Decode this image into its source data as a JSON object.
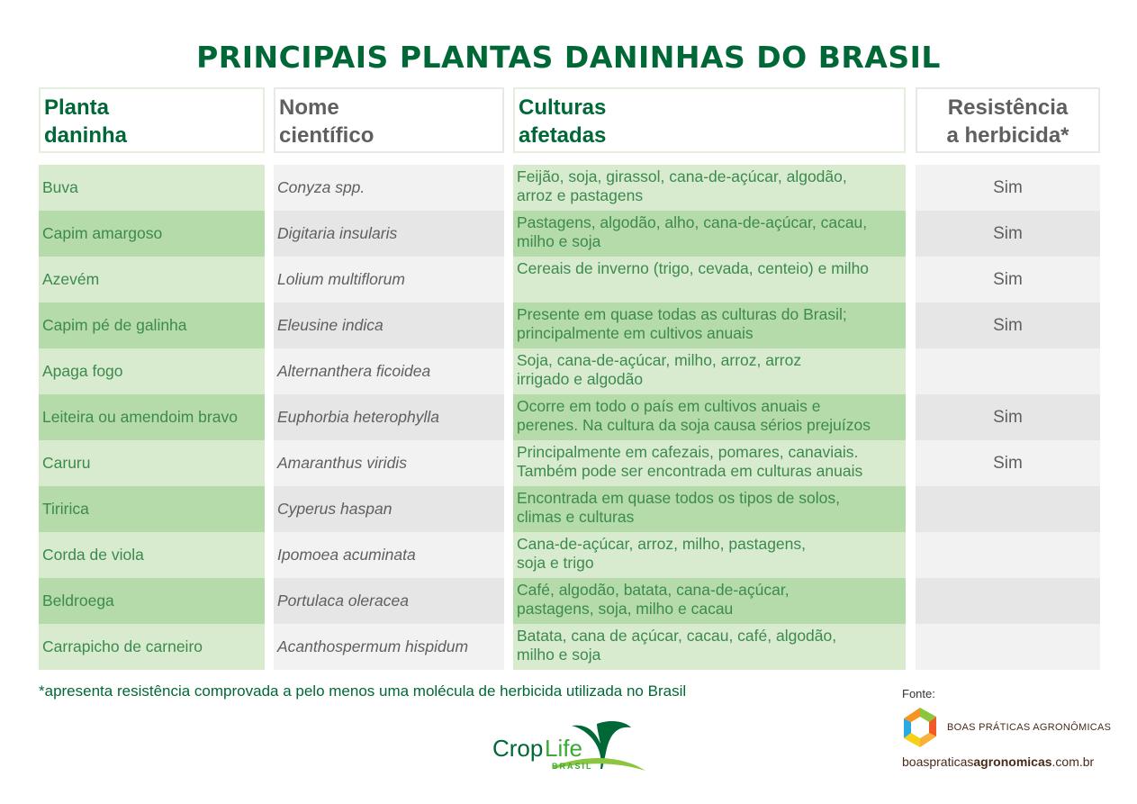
{
  "title": "PRINCIPAIS PLANTAS DANINHAS DO BRASIL",
  "headers": {
    "planta": [
      "Planta",
      "daninha"
    ],
    "nome": [
      "Nome",
      "científico"
    ],
    "culturas": [
      "Culturas",
      "afetadas"
    ],
    "resistencia": [
      "Resistência",
      "a herbicida*"
    ]
  },
  "rows": [
    {
      "planta": "Buva",
      "nome": "Conyza spp.",
      "culturas": [
        "Feijão, soja, girassol, cana-de-açúcar, algodão,",
        "arroz e pastagens"
      ],
      "resistencia": "Sim"
    },
    {
      "planta": "Capim amargoso",
      "nome": "Digitaria insularis",
      "culturas": [
        "Pastagens, algodão, alho, cana-de-açúcar, cacau,",
        "milho e soja"
      ],
      "resistencia": "Sim"
    },
    {
      "planta": "Azevém",
      "nome": "Lolium multiflorum",
      "culturas": [
        "Cereais de inverno (trigo, cevada, centeio) e milho",
        ""
      ],
      "resistencia": "Sim"
    },
    {
      "planta": "Capim pé de galinha",
      "nome": "Eleusine indica",
      "culturas": [
        "Presente em quase todas as culturas do Brasil;",
        "principalmente em cultivos anuais"
      ],
      "resistencia": "Sim"
    },
    {
      "planta": "Apaga fogo",
      "nome": "Alternanthera ficoidea",
      "culturas": [
        "Soja, cana-de-açúcar, milho, arroz, arroz",
        "irrigado e algodão"
      ],
      "resistencia": ""
    },
    {
      "planta": "Leiteira ou amendoim bravo",
      "nome": "Euphorbia heterophylla",
      "culturas": [
        "Ocorre em todo o país em cultivos anuais e",
        "perenes. Na cultura da soja causa sérios prejuízos"
      ],
      "resistencia": "Sim"
    },
    {
      "planta": "Caruru",
      "nome": "Amaranthus viridis",
      "culturas": [
        "Principalmente em cafezais, pomares, canaviais.",
        "Também pode ser encontrada em culturas anuais"
      ],
      "resistencia": "Sim"
    },
    {
      "planta": "Tiririca",
      "nome": "Cyperus haspan",
      "culturas": [
        "Encontrada em quase todos os tipos de solos,",
        "climas e culturas"
      ],
      "resistencia": ""
    },
    {
      "planta": "Corda de viola",
      "nome": "Ipomoea acuminata",
      "culturas": [
        "Cana-de-açúcar, arroz, milho, pastagens,",
        "soja e trigo"
      ],
      "resistencia": ""
    },
    {
      "planta": "Beldroega",
      "nome": "Portulaca oleracea",
      "culturas": [
        "Café, algodão, batata, cana-de-açúcar,",
        "pastagens, soja, milho e cacau"
      ],
      "resistencia": ""
    },
    {
      "planta": "Carrapicho de carneiro",
      "nome": "Acanthospermum hispidum",
      "culturas": [
        "Batata, cana de açúcar, cacau, café, algodão,",
        "milho e soja"
      ],
      "resistencia": ""
    }
  ],
  "footnote": "*apresenta resistência comprovada a pelo menos uma molécula de herbicida utilizada no Brasil",
  "source": {
    "label": "Fonte:",
    "name": "BOAS PRÁTICAS AGRONÔMICAS",
    "url_a": "boaspraticas",
    "url_b": "agronomicas",
    "url_c": ".com.br"
  },
  "logo": {
    "crop": "Crop",
    "life": "Life",
    "brasil": "BRASIL"
  },
  "colors": {
    "brand_green": "#006837",
    "row_green_light": "#d8ebcf",
    "row_green_dark": "#b6dbab",
    "row_grey_light": "#f2f2f2",
    "row_grey_dark": "#e6e6e6"
  }
}
